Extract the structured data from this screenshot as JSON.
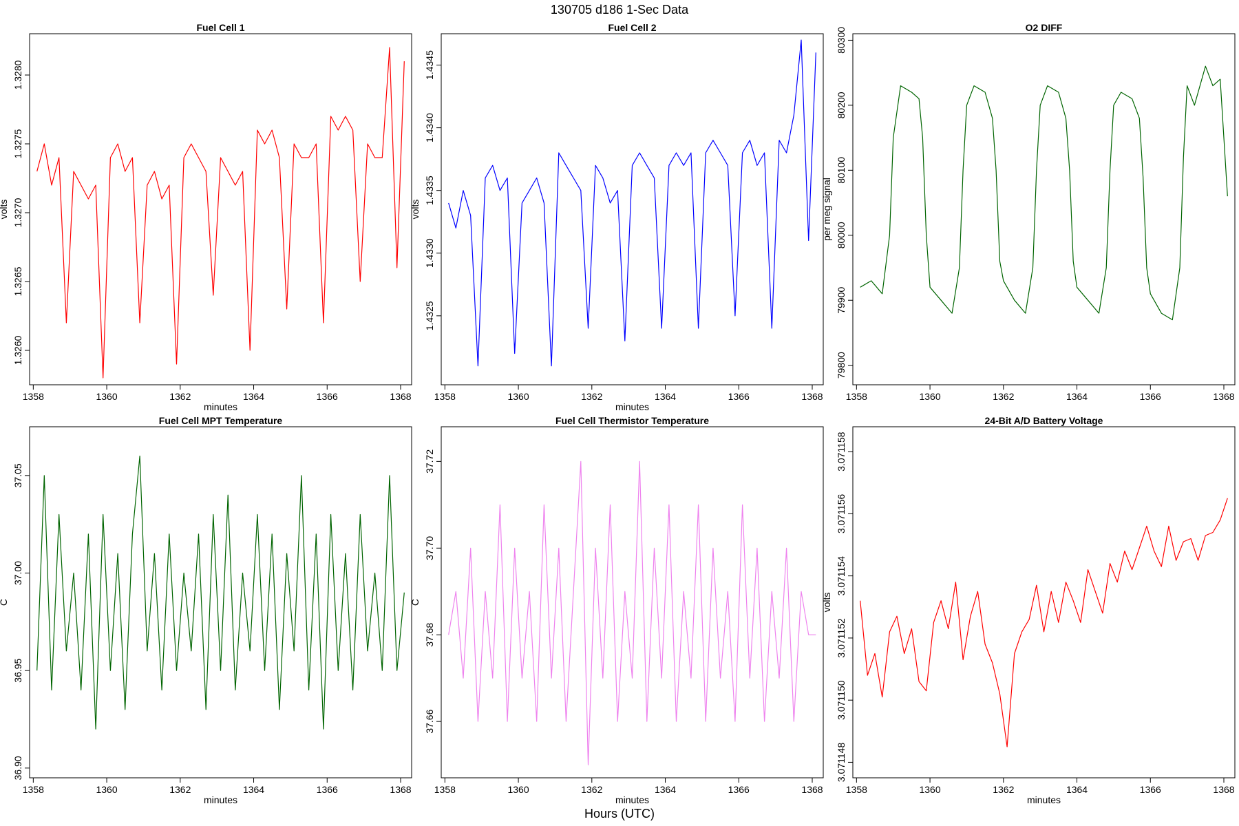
{
  "figure": {
    "suptitle": "130705   d186   1-Sec Data",
    "xlabel": "Hours (UTC)"
  },
  "chart_data": [
    {
      "type": "line",
      "title": "Fuel Cell 1",
      "xlabel": "minutes",
      "ylabel": "volts",
      "color": "#ff0000",
      "xlim": [
        1357.9,
        1368.3
      ],
      "ylim": [
        1.32575,
        1.3283
      ],
      "x_ticks": [
        1358,
        1360,
        1362,
        1364,
        1366,
        1368
      ],
      "x_tick_labels": [
        "1358",
        "1360",
        "1362",
        "1364",
        "1366",
        "1368"
      ],
      "y_ticks": [
        1.326,
        1.3265,
        1.327,
        1.3275,
        1.328
      ],
      "y_tick_labels": [
        "1.3260",
        "1.3265",
        "1.3270",
        "1.3275",
        "1.3280"
      ],
      "x": [
        1358.1,
        1358.3,
        1358.5,
        1358.7,
        1358.9,
        1359.1,
        1359.3,
        1359.5,
        1359.7,
        1359.9,
        1360.1,
        1360.3,
        1360.5,
        1360.7,
        1360.9,
        1361.1,
        1361.3,
        1361.5,
        1361.7,
        1361.9,
        1362.1,
        1362.3,
        1362.5,
        1362.7,
        1362.9,
        1363.1,
        1363.3,
        1363.5,
        1363.7,
        1363.9,
        1364.1,
        1364.3,
        1364.5,
        1364.7,
        1364.9,
        1365.1,
        1365.3,
        1365.5,
        1365.7,
        1365.9,
        1366.1,
        1366.3,
        1366.5,
        1366.7,
        1366.9,
        1367.1,
        1367.3,
        1367.5,
        1367.7,
        1367.9,
        1368.1
      ],
      "y": [
        1.3273,
        1.3275,
        1.3272,
        1.3274,
        1.3262,
        1.3273,
        1.3272,
        1.3271,
        1.3272,
        1.3258,
        1.3274,
        1.3275,
        1.3273,
        1.3274,
        1.3262,
        1.3272,
        1.3273,
        1.3271,
        1.3272,
        1.3259,
        1.3274,
        1.3275,
        1.3274,
        1.3273,
        1.3264,
        1.3274,
        1.3273,
        1.3272,
        1.3273,
        1.326,
        1.3276,
        1.3275,
        1.3276,
        1.3274,
        1.3263,
        1.3275,
        1.3274,
        1.3274,
        1.3275,
        1.3262,
        1.3277,
        1.3276,
        1.3277,
        1.3276,
        1.3265,
        1.3275,
        1.3274,
        1.3274,
        1.3282,
        1.3266,
        1.3281
      ]
    },
    {
      "type": "line",
      "title": "Fuel Cell 2",
      "xlabel": "minutes",
      "ylabel": "volts",
      "color": "#0000ff",
      "xlim": [
        1357.9,
        1368.3
      ],
      "ylim": [
        1.43195,
        1.43475
      ],
      "x_ticks": [
        1358,
        1360,
        1362,
        1364,
        1366,
        1368
      ],
      "x_tick_labels": [
        "1358",
        "1360",
        "1362",
        "1364",
        "1366",
        "1368"
      ],
      "y_ticks": [
        1.4325,
        1.433,
        1.4335,
        1.434,
        1.4345
      ],
      "y_tick_labels": [
        "1.4325",
        "1.4330",
        "1.4335",
        "1.4340",
        "1.4345"
      ],
      "x": [
        1358.1,
        1358.3,
        1358.5,
        1358.7,
        1358.9,
        1359.1,
        1359.3,
        1359.5,
        1359.7,
        1359.9,
        1360.1,
        1360.3,
        1360.5,
        1360.7,
        1360.9,
        1361.1,
        1361.3,
        1361.5,
        1361.7,
        1361.9,
        1362.1,
        1362.3,
        1362.5,
        1362.7,
        1362.9,
        1363.1,
        1363.3,
        1363.5,
        1363.7,
        1363.9,
        1364.1,
        1364.3,
        1364.5,
        1364.7,
        1364.9,
        1365.1,
        1365.3,
        1365.5,
        1365.7,
        1365.9,
        1366.1,
        1366.3,
        1366.5,
        1366.7,
        1366.9,
        1367.1,
        1367.3,
        1367.5,
        1367.7,
        1367.9,
        1368.1
      ],
      "y": [
        1.4334,
        1.4332,
        1.4335,
        1.4333,
        1.4321,
        1.4336,
        1.4337,
        1.4335,
        1.4336,
        1.4322,
        1.4334,
        1.4335,
        1.4336,
        1.4334,
        1.4321,
        1.4338,
        1.4337,
        1.4336,
        1.4335,
        1.4324,
        1.4337,
        1.4336,
        1.4334,
        1.4335,
        1.4323,
        1.4337,
        1.4338,
        1.4337,
        1.4336,
        1.4324,
        1.4337,
        1.4338,
        1.4337,
        1.4338,
        1.4324,
        1.4338,
        1.4339,
        1.4338,
        1.4337,
        1.4325,
        1.4338,
        1.4339,
        1.4337,
        1.4338,
        1.4324,
        1.4339,
        1.4338,
        1.4341,
        1.4347,
        1.4331,
        1.4346
      ]
    },
    {
      "type": "line",
      "title": "O2 DIFF",
      "xlabel": "",
      "ylabel": "per meg signal",
      "color": "#006400",
      "xlim": [
        1357.9,
        1368.3
      ],
      "ylim": [
        79770,
        80310
      ],
      "x_ticks": [
        1358,
        1360,
        1362,
        1364,
        1366,
        1368
      ],
      "x_tick_labels": [
        "1358",
        "1360",
        "1362",
        "1364",
        "1366",
        "1368"
      ],
      "y_ticks": [
        79800,
        79900,
        80000,
        80100,
        80200,
        80300
      ],
      "y_tick_labels": [
        "79800",
        "79900",
        "80000",
        "80100",
        "80200",
        "80300"
      ],
      "x": [
        1358.1,
        1358.4,
        1358.7,
        1358.9,
        1359.0,
        1359.2,
        1359.5,
        1359.7,
        1359.8,
        1359.9,
        1360.0,
        1360.3,
        1360.6,
        1360.8,
        1360.9,
        1361.0,
        1361.2,
        1361.5,
        1361.7,
        1361.8,
        1361.9,
        1362.0,
        1362.3,
        1362.6,
        1362.8,
        1362.9,
        1363.0,
        1363.2,
        1363.5,
        1363.7,
        1363.8,
        1363.9,
        1364.0,
        1364.3,
        1364.6,
        1364.8,
        1364.9,
        1365.0,
        1365.2,
        1365.5,
        1365.7,
        1365.8,
        1365.9,
        1366.0,
        1366.3,
        1366.6,
        1366.8,
        1366.9,
        1367.0,
        1367.2,
        1367.5,
        1367.7,
        1367.9,
        1368.1
      ],
      "y": [
        79920,
        79930,
        79910,
        80000,
        80150,
        80230,
        80220,
        80210,
        80150,
        80000,
        79920,
        79900,
        79880,
        79950,
        80100,
        80200,
        80230,
        80220,
        80180,
        80100,
        79960,
        79930,
        79900,
        79880,
        79950,
        80100,
        80200,
        80230,
        80220,
        80180,
        80100,
        79960,
        79920,
        79900,
        79880,
        79950,
        80100,
        80200,
        80220,
        80210,
        80180,
        80090,
        79950,
        79910,
        79880,
        79870,
        79950,
        80120,
        80230,
        80200,
        80260,
        80230,
        80240,
        80060
      ]
    },
    {
      "type": "line",
      "title": "Fuel Cell MPT Temperature",
      "xlabel": "minutes",
      "ylabel": "C",
      "color": "#006400",
      "xlim": [
        1357.9,
        1368.3
      ],
      "ylim": [
        36.895,
        37.075
      ],
      "x_ticks": [
        1358,
        1360,
        1362,
        1364,
        1366,
        1368
      ],
      "x_tick_labels": [
        "1358",
        "1360",
        "1362",
        "1364",
        "1366",
        "1368"
      ],
      "y_ticks": [
        36.9,
        36.95,
        37.0,
        37.05
      ],
      "y_tick_labels": [
        "36.90",
        "36.95",
        "37.00",
        "37.05"
      ],
      "x": [
        1358.1,
        1358.3,
        1358.5,
        1358.7,
        1358.9,
        1359.1,
        1359.3,
        1359.5,
        1359.7,
        1359.9,
        1360.1,
        1360.3,
        1360.5,
        1360.7,
        1360.9,
        1361.1,
        1361.3,
        1361.5,
        1361.7,
        1361.9,
        1362.1,
        1362.3,
        1362.5,
        1362.7,
        1362.9,
        1363.1,
        1363.3,
        1363.5,
        1363.7,
        1363.9,
        1364.1,
        1364.3,
        1364.5,
        1364.7,
        1364.9,
        1365.1,
        1365.3,
        1365.5,
        1365.7,
        1365.9,
        1366.1,
        1366.3,
        1366.5,
        1366.7,
        1366.9,
        1367.1,
        1367.3,
        1367.5,
        1367.7,
        1367.9,
        1368.1
      ],
      "y": [
        36.95,
        37.05,
        36.94,
        37.03,
        36.96,
        37.0,
        36.94,
        37.02,
        36.92,
        37.03,
        36.95,
        37.01,
        36.93,
        37.02,
        37.06,
        36.96,
        37.01,
        36.94,
        37.02,
        36.95,
        37.0,
        36.96,
        37.02,
        36.93,
        37.03,
        36.95,
        37.04,
        36.94,
        37.0,
        36.96,
        37.03,
        36.95,
        37.02,
        36.93,
        37.01,
        36.96,
        37.05,
        36.94,
        37.02,
        36.92,
        37.03,
        36.95,
        37.01,
        36.94,
        37.03,
        36.96,
        37.0,
        36.95,
        37.05,
        36.95,
        36.99
      ]
    },
    {
      "type": "line",
      "title": "Fuel Cell Thermistor Temperature",
      "xlabel": "minutes",
      "ylabel": "C",
      "color": "#ee82ee",
      "xlim": [
        1357.9,
        1368.3
      ],
      "ylim": [
        37.647,
        37.728
      ],
      "x_ticks": [
        1358,
        1360,
        1362,
        1364,
        1366,
        1368
      ],
      "x_tick_labels": [
        "1358",
        "1360",
        "1362",
        "1364",
        "1366",
        "1368"
      ],
      "y_ticks": [
        37.66,
        37.68,
        37.7,
        37.72
      ],
      "y_tick_labels": [
        "37.66",
        "37.68",
        "37.70",
        "37.72"
      ],
      "x": [
        1358.1,
        1358.3,
        1358.5,
        1358.7,
        1358.9,
        1359.1,
        1359.3,
        1359.5,
        1359.7,
        1359.9,
        1360.1,
        1360.3,
        1360.5,
        1360.7,
        1360.9,
        1361.1,
        1361.3,
        1361.5,
        1361.7,
        1361.9,
        1362.1,
        1362.3,
        1362.5,
        1362.7,
        1362.9,
        1363.1,
        1363.3,
        1363.5,
        1363.7,
        1363.9,
        1364.1,
        1364.3,
        1364.5,
        1364.7,
        1364.9,
        1365.1,
        1365.3,
        1365.5,
        1365.7,
        1365.9,
        1366.1,
        1366.3,
        1366.5,
        1366.7,
        1366.9,
        1367.1,
        1367.3,
        1367.5,
        1367.7,
        1367.9,
        1368.1
      ],
      "y": [
        37.68,
        37.69,
        37.67,
        37.7,
        37.66,
        37.69,
        37.67,
        37.71,
        37.66,
        37.7,
        37.67,
        37.69,
        37.66,
        37.71,
        37.67,
        37.7,
        37.66,
        37.69,
        37.72,
        37.65,
        37.7,
        37.67,
        37.71,
        37.66,
        37.69,
        37.67,
        37.72,
        37.66,
        37.7,
        37.67,
        37.71,
        37.66,
        37.69,
        37.67,
        37.71,
        37.66,
        37.7,
        37.67,
        37.69,
        37.66,
        37.71,
        37.67,
        37.7,
        37.66,
        37.69,
        37.67,
        37.7,
        37.66,
        37.69,
        37.68,
        37.68
      ]
    },
    {
      "type": "line",
      "title": "24-Bit A/D Battery Voltage",
      "xlabel": "minutes",
      "ylabel": "volts",
      "color": "#ff0000",
      "xlim": [
        1357.9,
        1368.3
      ],
      "ylim": [
        3.0711475,
        3.0711588
      ],
      "x_ticks": [
        1358,
        1360,
        1362,
        1364,
        1366,
        1368
      ],
      "x_tick_labels": [
        "1358",
        "1360",
        "1362",
        "1364",
        "1366",
        "1368"
      ],
      "y_ticks": [
        3.071148,
        3.07115,
        3.071152,
        3.071154,
        3.071156,
        3.071158
      ],
      "y_tick_labels": [
        "3.071148",
        "3.071150",
        "3.071152",
        "3.071154",
        "3.071156",
        "3.071158"
      ],
      "x": [
        1358.1,
        1358.3,
        1358.5,
        1358.7,
        1358.9,
        1359.1,
        1359.3,
        1359.5,
        1359.7,
        1359.9,
        1360.1,
        1360.3,
        1360.5,
        1360.7,
        1360.9,
        1361.1,
        1361.3,
        1361.5,
        1361.7,
        1361.9,
        1362.1,
        1362.3,
        1362.5,
        1362.7,
        1362.9,
        1363.1,
        1363.3,
        1363.5,
        1363.7,
        1363.9,
        1364.1,
        1364.3,
        1364.5,
        1364.7,
        1364.9,
        1365.1,
        1365.3,
        1365.5,
        1365.7,
        1365.9,
        1366.1,
        1366.3,
        1366.5,
        1366.7,
        1366.9,
        1367.1,
        1367.3,
        1367.5,
        1367.7,
        1367.9,
        1368.1
      ],
      "y": [
        3.0711532,
        3.0711508,
        3.0711515,
        3.0711501,
        3.0711522,
        3.0711527,
        3.0711515,
        3.0711523,
        3.0711506,
        3.0711503,
        3.0711525,
        3.0711532,
        3.0711523,
        3.0711538,
        3.0711513,
        3.0711527,
        3.0711535,
        3.0711518,
        3.0711512,
        3.0711502,
        3.0711485,
        3.0711515,
        3.0711522,
        3.0711526,
        3.0711537,
        3.0711522,
        3.0711535,
        3.0711525,
        3.0711538,
        3.0711532,
        3.0711525,
        3.0711542,
        3.0711535,
        3.0711528,
        3.0711544,
        3.0711538,
        3.0711548,
        3.0711542,
        3.0711549,
        3.0711556,
        3.0711548,
        3.0711543,
        3.0711556,
        3.0711545,
        3.0711551,
        3.0711552,
        3.0711545,
        3.0711553,
        3.0711554,
        3.0711558,
        3.0711565
      ]
    }
  ]
}
